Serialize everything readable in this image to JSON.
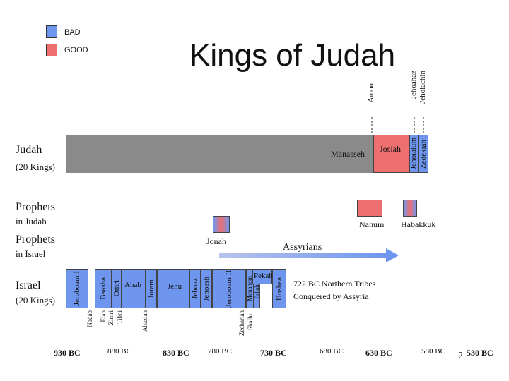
{
  "title": "Kings of Judah",
  "legend": {
    "bad_label": "BAD",
    "good_label": "GOOD",
    "bad_color": "#6f96ee",
    "good_color": "#ee6f70"
  },
  "judah": {
    "label": "Judah",
    "sublabel": "(20 Kings)",
    "manasseh": "Manasseh",
    "josiah": "Josiah",
    "jehoiakim": "Jehoiakim",
    "zedekiah": "Zedekiah",
    "amon": "Amon",
    "jehoahaz": "Jehoahaz",
    "jehoiachin": "Jehoiachin"
  },
  "prophets_judah": {
    "label": "Prophets",
    "sublabel": "in Judah",
    "nahum": "Nahum",
    "habakkuk": "Habakkuk"
  },
  "prophets_israel": {
    "label": "Prophets",
    "sublabel": "in Israel",
    "jonah": "Jonah"
  },
  "assyrians": "Assyrians",
  "israel": {
    "label": "Israel",
    "sublabel": "(20 Kings)",
    "jeroboam1": "Jeroboam I",
    "nadab": "Nadab",
    "baasha": "Baasha",
    "elah": "Elah",
    "zimri": "Zimri",
    "tibni": "Tibni",
    "omri": "Omri",
    "ahab": "Ahab",
    "ahaziah": "Ahaziah",
    "joram": "Joram",
    "jehu": "Jehu",
    "jehoaz": "Jehoaz",
    "jehoash": "Jehoash",
    "jeroboam2": "Jeroboam II",
    "zechariah": "Zechariah",
    "shallum": "Shallu",
    "menahem": "Menahem",
    "pekahiah": "Pekahiah",
    "pekah": "Pekah",
    "hoshea": "Hoshea"
  },
  "note": {
    "line1": "722 BC Northern Tribes",
    "line2": "Conquered by Assyria"
  },
  "years": [
    "930 BC",
    "880 BC",
    "830 BC",
    "780 BC",
    "730 BC",
    "680 BC",
    "630 BC",
    "580 BC",
    "530 BC"
  ],
  "page_number": "2"
}
